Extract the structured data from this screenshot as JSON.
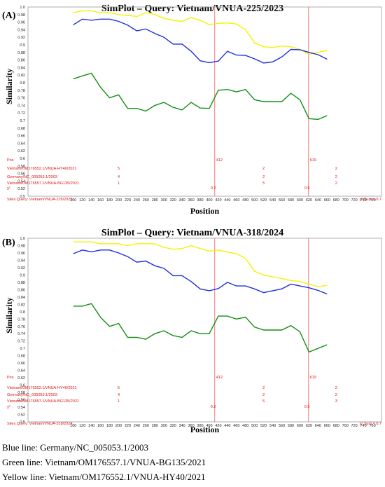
{
  "colors": {
    "blue": "#1f2fe0",
    "green": "#138f13",
    "yellow": "#f3f300",
    "annotation": "#e01010",
    "breakpoint": "#f07070"
  },
  "chart_data": [
    {
      "type": "line",
      "panel_label": "(A)",
      "title": "SimPlot – Query: Vietnam/VNUA-225/2023",
      "xlabel": "Position",
      "ylabel": "Similarity",
      "xlim": [
        0,
        780
      ],
      "ylim": [
        0.5,
        1.0
      ],
      "x_ticks": [
        100,
        120,
        140,
        160,
        180,
        200,
        220,
        240,
        260,
        280,
        300,
        320,
        340,
        360,
        380,
        400,
        420,
        440,
        460,
        480,
        500,
        520,
        540,
        560,
        580,
        600,
        620,
        640,
        660,
        680,
        700,
        720,
        740,
        760
      ],
      "y_ticks": [
        "1.0",
        "0.98",
        "0.96",
        "0.94",
        "0.92",
        "0.9",
        "0.88",
        "0.86",
        "0.84",
        "0.82",
        "0.8",
        "0.78",
        "0.76",
        "0.74",
        "0.72",
        "0.7",
        "0.68",
        "0.66",
        "0.64",
        "0.62",
        "0.6",
        "0.58",
        "0.56",
        "0.54",
        "0.52",
        "0.5"
      ],
      "grid": false,
      "x": [
        100,
        120,
        140,
        160,
        180,
        200,
        220,
        240,
        260,
        280,
        300,
        320,
        340,
        360,
        380,
        400,
        420,
        440,
        460,
        480,
        500,
        520,
        540,
        560,
        580,
        600,
        620,
        640,
        660
      ],
      "series": [
        {
          "color": "yellow",
          "values": [
            0.985,
            0.99,
            0.99,
            0.985,
            0.985,
            0.98,
            0.978,
            0.975,
            0.985,
            0.98,
            0.97,
            0.965,
            0.962,
            0.972,
            0.965,
            0.953,
            0.957,
            0.958,
            0.955,
            0.94,
            0.905,
            0.895,
            0.893,
            0.897,
            0.895,
            0.888,
            0.875,
            0.88,
            0.885
          ]
        },
        {
          "color": "blue",
          "values": [
            0.953,
            0.968,
            0.965,
            0.968,
            0.968,
            0.962,
            0.952,
            0.937,
            0.942,
            0.93,
            0.92,
            0.902,
            0.902,
            0.883,
            0.858,
            0.853,
            0.857,
            0.883,
            0.873,
            0.872,
            0.863,
            0.852,
            0.855,
            0.868,
            0.888,
            0.887,
            0.88,
            0.874,
            0.862
          ]
        },
        {
          "color": "green",
          "values": [
            0.81,
            0.818,
            0.825,
            0.788,
            0.76,
            0.768,
            0.732,
            0.732,
            0.725,
            0.74,
            0.748,
            0.735,
            0.728,
            0.748,
            0.733,
            0.732,
            0.78,
            0.782,
            0.776,
            0.782,
            0.755,
            0.75,
            0.75,
            0.75,
            0.772,
            0.755,
            0.705,
            0.703,
            0.713
          ]
        }
      ],
      "breakpoints": [
        {
          "pos": 412,
          "label": "412"
        },
        {
          "pos": 619,
          "label": "619"
        }
      ],
      "pos_label": "Pos",
      "rows": [
        {
          "label": "Vietnam/OM176552.1/VNUA-HY40/2021",
          "v1": "5",
          "v2": "2",
          "v3": "2"
        },
        {
          "label": "Germany/NC_005053.1/2003",
          "v1": "4",
          "v2": "2",
          "v3": "2"
        },
        {
          "label": "Vietnam/OM176557.1/VNUA-BG135/2021",
          "v1": "1",
          "v2": "5",
          "v3": "2"
        }
      ],
      "chi_label": "χ²",
      "chi_values": [
        "0.2",
        "0.5"
      ],
      "sites_label": "Sites Query: Vietnam/VNUA-225/2023",
      "sum_label": "χ² Sum = 0.7"
    },
    {
      "type": "line",
      "panel_label": "(B)",
      "title": "SimPlot – Query: Vietnam/VNUA-318/2024",
      "xlabel": "Position",
      "ylabel": "Similarity",
      "xlim": [
        0,
        780
      ],
      "ylim": [
        0.5,
        1.0
      ],
      "x_ticks": [
        100,
        120,
        140,
        160,
        180,
        200,
        220,
        240,
        260,
        280,
        300,
        320,
        340,
        360,
        380,
        400,
        420,
        440,
        460,
        480,
        500,
        520,
        540,
        560,
        580,
        600,
        620,
        640,
        660,
        680,
        700,
        720,
        740,
        760
      ],
      "y_ticks": [
        "1.0",
        "0.98",
        "0.96",
        "0.94",
        "0.92",
        "0.9",
        "0.88",
        "0.86",
        "0.84",
        "0.82",
        "0.8",
        "0.78",
        "0.76",
        "0.74",
        "0.72",
        "0.7",
        "0.68",
        "0.66",
        "0.64",
        "0.62",
        "0.6",
        "0.58",
        "0.56",
        "0.54",
        "0.52",
        "0.5"
      ],
      "grid": false,
      "x": [
        100,
        120,
        140,
        160,
        180,
        200,
        220,
        240,
        260,
        280,
        300,
        320,
        340,
        360,
        380,
        400,
        420,
        440,
        460,
        480,
        500,
        520,
        540,
        560,
        580,
        600,
        620,
        640,
        660
      ],
      "series": [
        {
          "color": "yellow",
          "values": [
            0.99,
            0.99,
            0.99,
            0.985,
            0.985,
            0.985,
            0.98,
            0.985,
            0.985,
            0.985,
            0.975,
            0.97,
            0.972,
            0.98,
            0.972,
            0.965,
            0.968,
            0.962,
            0.958,
            0.945,
            0.91,
            0.9,
            0.895,
            0.89,
            0.885,
            0.882,
            0.875,
            0.868,
            0.872
          ]
        },
        {
          "color": "blue",
          "values": [
            0.958,
            0.968,
            0.963,
            0.968,
            0.968,
            0.96,
            0.95,
            0.935,
            0.938,
            0.925,
            0.918,
            0.898,
            0.898,
            0.882,
            0.862,
            0.857,
            0.863,
            0.88,
            0.87,
            0.87,
            0.862,
            0.852,
            0.857,
            0.862,
            0.875,
            0.87,
            0.865,
            0.858,
            0.848
          ]
        },
        {
          "color": "green",
          "values": [
            0.815,
            0.815,
            0.822,
            0.785,
            0.76,
            0.768,
            0.73,
            0.73,
            0.725,
            0.74,
            0.748,
            0.735,
            0.73,
            0.748,
            0.74,
            0.74,
            0.788,
            0.788,
            0.78,
            0.785,
            0.758,
            0.75,
            0.75,
            0.75,
            0.762,
            0.745,
            0.69,
            0.7,
            0.71
          ]
        }
      ],
      "breakpoints": [
        {
          "pos": 412,
          "label": "412"
        },
        {
          "pos": 619,
          "label": "619"
        }
      ],
      "pos_label": "Pos",
      "rows": [
        {
          "label": "Vietnam/OM176552.1/VNUA-HY40/2021",
          "v1": "5",
          "v2": "2",
          "v3": "2"
        },
        {
          "label": "Germany/NC_005053.1/2003",
          "v1": "4",
          "v2": "2",
          "v3": "2"
        },
        {
          "label": "Vietnam/OM176557.1/VNUA-BG135/2021",
          "v1": "1",
          "v2": "5",
          "v3": "3"
        }
      ],
      "chi_label": "χ²",
      "chi_values": [
        "0.2",
        "0.5"
      ],
      "sites_label": "Sites Query: Vietnam/VNUA-318/2024",
      "sum_label": "χ² Sum = 0.7"
    }
  ],
  "legend": [
    {
      "text": "Blue line: Germany/NC_005053.1/2003"
    },
    {
      "text": "Green line:  Vietnam/OM176557.1/VNUA-BG135/2021"
    },
    {
      "text": "Yellow line: Vietnam/OM176552.1/VNUA-HY40/2021"
    }
  ]
}
